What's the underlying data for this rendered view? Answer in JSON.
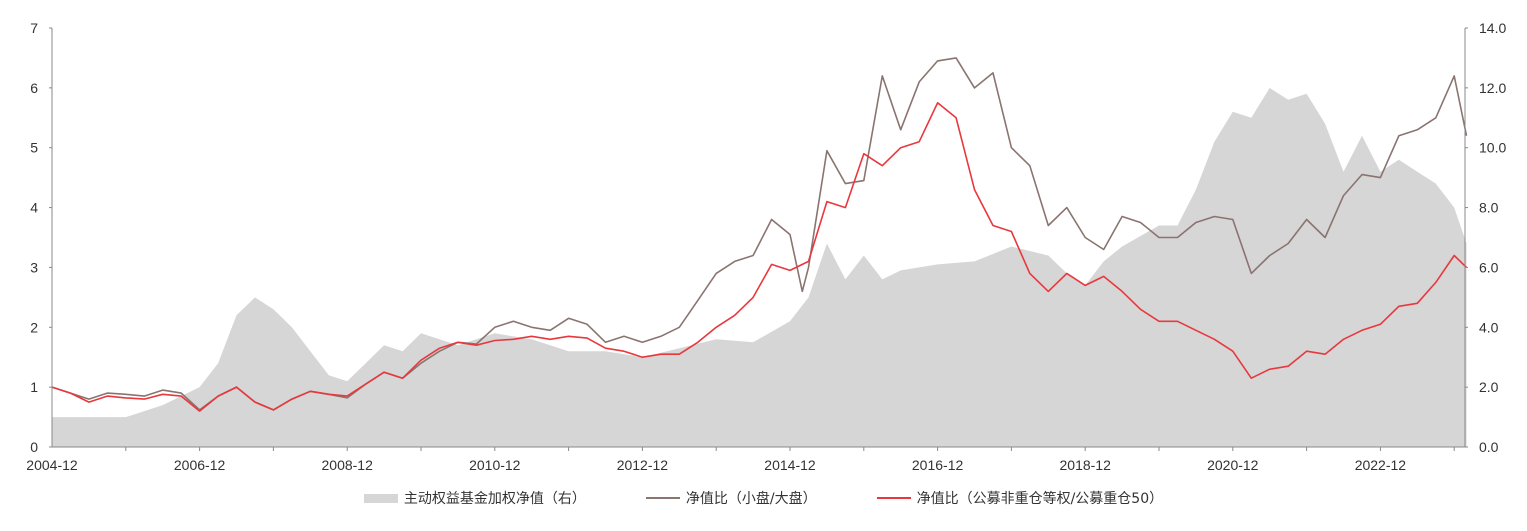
{
  "chart_data": {
    "type": "line",
    "x_ticks": [
      "2004-12",
      "2006-12",
      "2008-12",
      "2010-12",
      "2012-12",
      "2014-12",
      "2016-12",
      "2018-12",
      "2020-12",
      "2022-12"
    ],
    "y_left": {
      "lim": [
        0,
        7
      ],
      "ticks": [
        "0",
        "1",
        "2",
        "3",
        "4",
        "5",
        "6",
        "7"
      ]
    },
    "y_right": {
      "lim": [
        0,
        14
      ],
      "ticks": [
        "0.0",
        "2.0",
        "4.0",
        "6.0",
        "8.0",
        "10.0",
        "12.0",
        "14.0"
      ]
    },
    "grid": false,
    "legend_position": "bottom",
    "colors": {
      "area": "#d6d6d6",
      "small_large": "#8a7470",
      "red": "#e8383d"
    },
    "series": [
      {
        "name": "主动权益基金加权净值（右）",
        "type": "area",
        "axis": "right",
        "x": [
          "2004-12",
          "2005-06",
          "2005-12",
          "2006-06",
          "2006-12",
          "2007-03",
          "2007-06",
          "2007-09",
          "2007-12",
          "2008-03",
          "2008-06",
          "2008-09",
          "2008-12",
          "2009-03",
          "2009-06",
          "2009-09",
          "2009-12",
          "2010-03",
          "2010-06",
          "2010-12",
          "2011-06",
          "2011-12",
          "2012-06",
          "2012-12",
          "2013-06",
          "2013-12",
          "2014-06",
          "2014-12",
          "2015-03",
          "2015-06",
          "2015-09",
          "2015-12",
          "2016-03",
          "2016-06",
          "2016-12",
          "2017-06",
          "2017-12",
          "2018-06",
          "2018-09",
          "2018-12",
          "2019-03",
          "2019-06",
          "2019-12",
          "2020-03",
          "2020-06",
          "2020-09",
          "2020-12",
          "2021-03",
          "2021-06",
          "2021-09",
          "2021-12",
          "2022-03",
          "2022-06",
          "2022-09",
          "2022-12",
          "2023-03",
          "2023-06",
          "2023-09",
          "2023-12",
          "2024-02"
        ],
        "values": [
          1.0,
          1.0,
          1.0,
          1.4,
          2.0,
          2.8,
          4.4,
          5.0,
          4.6,
          4.0,
          3.2,
          2.4,
          2.2,
          2.8,
          3.4,
          3.2,
          3.8,
          3.6,
          3.4,
          3.8,
          3.6,
          3.2,
          3.2,
          3.0,
          3.3,
          3.6,
          3.5,
          4.2,
          5.0,
          6.8,
          5.6,
          6.4,
          5.6,
          5.9,
          6.1,
          6.2,
          6.7,
          6.4,
          5.8,
          5.4,
          6.2,
          6.7,
          7.4,
          7.4,
          8.6,
          10.2,
          11.2,
          11.0,
          12.0,
          11.6,
          11.8,
          10.8,
          9.2,
          10.4,
          9.2,
          9.6,
          9.2,
          8.8,
          8.0,
          6.8
        ]
      },
      {
        "name": "净值比（小盘/大盘）",
        "type": "line",
        "axis": "left",
        "x": [
          "2004-12",
          "2005-03",
          "2005-06",
          "2005-09",
          "2005-12",
          "2006-03",
          "2006-06",
          "2006-09",
          "2006-12",
          "2007-03",
          "2007-06",
          "2007-09",
          "2007-12",
          "2008-03",
          "2008-06",
          "2008-09",
          "2008-12",
          "2009-03",
          "2009-06",
          "2009-09",
          "2009-12",
          "2010-03",
          "2010-06",
          "2010-09",
          "2010-12",
          "2011-03",
          "2011-06",
          "2011-09",
          "2011-12",
          "2012-03",
          "2012-06",
          "2012-09",
          "2012-12",
          "2013-03",
          "2013-06",
          "2013-09",
          "2013-12",
          "2014-03",
          "2014-06",
          "2014-09",
          "2014-12",
          "2015-02",
          "2015-03",
          "2015-06",
          "2015-09",
          "2015-12",
          "2016-03",
          "2016-06",
          "2016-09",
          "2016-12",
          "2017-03",
          "2017-06",
          "2017-09",
          "2017-12",
          "2018-03",
          "2018-06",
          "2018-09",
          "2018-12",
          "2019-03",
          "2019-06",
          "2019-09",
          "2019-12",
          "2020-03",
          "2020-06",
          "2020-09",
          "2020-12",
          "2021-03",
          "2021-06",
          "2021-09",
          "2021-12",
          "2022-03",
          "2022-06",
          "2022-09",
          "2022-12",
          "2023-03",
          "2023-06",
          "2023-09",
          "2023-12",
          "2024-02"
        ],
        "values": [
          1.0,
          0.9,
          0.8,
          0.9,
          0.88,
          0.85,
          0.95,
          0.9,
          0.62,
          0.85,
          1.0,
          0.75,
          0.62,
          0.8,
          0.93,
          0.88,
          0.82,
          1.05,
          1.25,
          1.15,
          1.4,
          1.6,
          1.75,
          1.72,
          2.0,
          2.1,
          2.0,
          1.95,
          2.15,
          2.05,
          1.75,
          1.85,
          1.75,
          1.85,
          2.0,
          2.45,
          2.9,
          3.1,
          3.2,
          3.8,
          3.55,
          2.6,
          3.0,
          4.95,
          4.4,
          4.45,
          6.2,
          5.3,
          6.1,
          6.45,
          6.5,
          6.0,
          6.25,
          5.0,
          4.7,
          3.7,
          4.0,
          3.5,
          3.3,
          3.85,
          3.75,
          3.5,
          3.5,
          3.75,
          3.85,
          3.8,
          2.9,
          3.2,
          3.4,
          3.8,
          3.5,
          4.2,
          4.55,
          4.5,
          5.2,
          5.3,
          5.5,
          6.2,
          5.2
        ]
      },
      {
        "name": "净值比（公募非重仓等权/公募重仓50）",
        "type": "line",
        "axis": "left",
        "x": [
          "2004-12",
          "2005-03",
          "2005-06",
          "2005-09",
          "2005-12",
          "2006-03",
          "2006-06",
          "2006-09",
          "2006-12",
          "2007-03",
          "2007-06",
          "2007-09",
          "2007-12",
          "2008-03",
          "2008-06",
          "2008-09",
          "2008-12",
          "2009-03",
          "2009-06",
          "2009-09",
          "2009-12",
          "2010-03",
          "2010-06",
          "2010-09",
          "2010-12",
          "2011-03",
          "2011-06",
          "2011-09",
          "2011-12",
          "2012-03",
          "2012-06",
          "2012-09",
          "2012-12",
          "2013-03",
          "2013-06",
          "2013-09",
          "2013-12",
          "2014-03",
          "2014-06",
          "2014-09",
          "2014-12",
          "2015-03",
          "2015-06",
          "2015-09",
          "2015-12",
          "2016-03",
          "2016-06",
          "2016-09",
          "2016-12",
          "2017-03",
          "2017-06",
          "2017-09",
          "2017-12",
          "2018-03",
          "2018-06",
          "2018-09",
          "2018-12",
          "2019-03",
          "2019-06",
          "2019-09",
          "2019-12",
          "2020-03",
          "2020-06",
          "2020-09",
          "2020-12",
          "2021-03",
          "2021-06",
          "2021-09",
          "2021-12",
          "2022-03",
          "2022-06",
          "2022-09",
          "2022-12",
          "2023-03",
          "2023-06",
          "2023-09",
          "2023-12",
          "2024-02"
        ],
        "values": [
          1.0,
          0.9,
          0.75,
          0.85,
          0.82,
          0.8,
          0.88,
          0.85,
          0.6,
          0.85,
          1.0,
          0.75,
          0.62,
          0.8,
          0.93,
          0.88,
          0.85,
          1.05,
          1.25,
          1.15,
          1.45,
          1.65,
          1.75,
          1.7,
          1.78,
          1.8,
          1.85,
          1.8,
          1.85,
          1.82,
          1.65,
          1.6,
          1.5,
          1.55,
          1.55,
          1.75,
          2.0,
          2.2,
          2.5,
          3.05,
          2.95,
          3.1,
          4.1,
          4.0,
          4.9,
          4.7,
          5.0,
          5.1,
          5.75,
          5.5,
          4.3,
          3.7,
          3.6,
          2.9,
          2.6,
          2.9,
          2.7,
          2.85,
          2.6,
          2.3,
          2.1,
          2.1,
          1.95,
          1.8,
          1.6,
          1.15,
          1.3,
          1.35,
          1.6,
          1.55,
          1.8,
          1.95,
          2.05,
          2.35,
          2.4,
          2.75,
          3.2,
          3.0
        ]
      }
    ]
  }
}
